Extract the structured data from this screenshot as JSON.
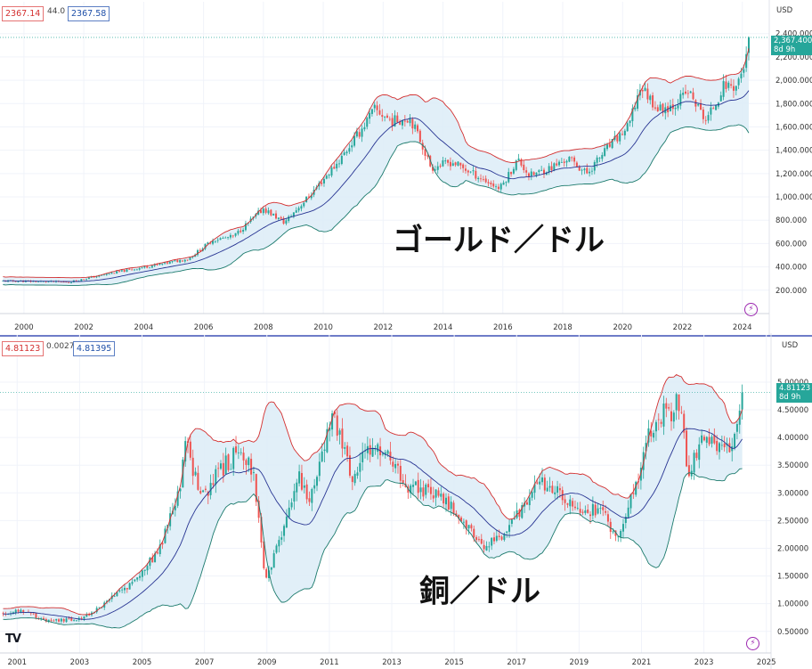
{
  "gold": {
    "title": "ゴールド／ドル",
    "header": {
      "bid": "2367.14",
      "spread": "44.0",
      "ask": "2367.58"
    },
    "unit": "USD",
    "last": {
      "value": "2,367.400",
      "countdown": "8d 9h"
    }
  },
  "copper": {
    "title": "銅／ドル",
    "header": {
      "bid": "4.81123",
      "spread": "0.00272",
      "ask": "4.81395"
    },
    "unit": "USD",
    "last": {
      "value": "4.81123",
      "countdown": "8d 9h"
    }
  },
  "icons": {
    "lightning": "lightning-icon",
    "logo": "tradingview-logo"
  },
  "colors": {
    "up": "#26a69a",
    "down": "#ef5350",
    "upper_band": "#d32f2f",
    "lower_band": "#1b7a6c",
    "mid_band": "#283593",
    "band_fill": "#dcecf7"
  },
  "chart_data": [
    {
      "type": "candlestick",
      "title": "ゴールド／ドル",
      "indicator": "bollinger bands",
      "y_ticks": [
        "200.000",
        "400.000",
        "600.000",
        "800.000",
        "1,000.000",
        "1,200.000",
        "1,400.000",
        "1,600.000",
        "1,800.000",
        "2,000.000",
        "2,200.000",
        "2,400.000"
      ],
      "x_ticks": [
        "2000",
        "2002",
        "2004",
        "2006",
        "2008",
        "2010",
        "2012",
        "2014",
        "2016",
        "2018",
        "2020",
        "2022",
        "2024"
      ],
      "ylim": [
        0,
        2520
      ],
      "xlim": [
        1999.2,
        2024.9
      ],
      "last_price": 2367.4,
      "close_path": [
        [
          1999.3,
          280
        ],
        [
          2001.5,
          270
        ],
        [
          2003.0,
          350
        ],
        [
          2004.5,
          420
        ],
        [
          2005.5,
          470
        ],
        [
          2006.3,
          630
        ],
        [
          2007.0,
          660
        ],
        [
          2008.0,
          900
        ],
        [
          2008.7,
          780
        ],
        [
          2009.5,
          1000
        ],
        [
          2010.5,
          1300
        ],
        [
          2011.2,
          1550
        ],
        [
          2011.7,
          1750
        ],
        [
          2012.3,
          1650
        ],
        [
          2012.9,
          1680
        ],
        [
          2013.3,
          1450
        ],
        [
          2013.6,
          1250
        ],
        [
          2014.3,
          1300
        ],
        [
          2015.0,
          1200
        ],
        [
          2015.9,
          1070
        ],
        [
          2016.5,
          1320
        ],
        [
          2016.9,
          1180
        ],
        [
          2017.6,
          1250
        ],
        [
          2018.2,
          1330
        ],
        [
          2018.8,
          1200
        ],
        [
          2019.5,
          1420
        ],
        [
          2020.2,
          1600
        ],
        [
          2020.6,
          1950
        ],
        [
          2021.2,
          1750
        ],
        [
          2021.7,
          1790
        ],
        [
          2022.2,
          1900
        ],
        [
          2022.8,
          1650
        ],
        [
          2023.4,
          1960
        ],
        [
          2023.8,
          1950
        ],
        [
          2024.2,
          2230
        ],
        [
          2024.3,
          2367
        ]
      ]
    },
    {
      "type": "candlestick",
      "title": "銅／ドル",
      "indicator": "bollinger bands",
      "y_ticks": [
        "0.50000",
        "1.00000",
        "1.50000",
        "2.00000",
        "2.50000",
        "3.00000",
        "3.50000",
        "4.00000",
        "4.50000",
        "5.00000"
      ],
      "x_ticks": [
        "2001",
        "2003",
        "2005",
        "2007",
        "2009",
        "2011",
        "2013",
        "2015",
        "2017",
        "2019",
        "2021",
        "2023",
        "2025"
      ],
      "ylim": [
        0.11,
        5.53
      ],
      "xlim": [
        2000.45,
        2025.15
      ],
      "last_price": 4.81123,
      "close_path": [
        [
          2000.5,
          0.82
        ],
        [
          2001.2,
          0.88
        ],
        [
          2002.0,
          0.68
        ],
        [
          2003.0,
          0.72
        ],
        [
          2003.7,
          0.95
        ],
        [
          2004.6,
          1.35
        ],
        [
          2005.5,
          1.9
        ],
        [
          2006.2,
          3.0
        ],
        [
          2006.4,
          3.9
        ],
        [
          2006.9,
          2.9
        ],
        [
          2007.5,
          3.4
        ],
        [
          2008.2,
          3.8
        ],
        [
          2008.6,
          3.3
        ],
        [
          2008.95,
          1.35
        ],
        [
          2009.5,
          2.3
        ],
        [
          2010.0,
          3.3
        ],
        [
          2010.4,
          2.9
        ],
        [
          2011.1,
          4.5
        ],
        [
          2011.7,
          3.3
        ],
        [
          2012.3,
          3.8
        ],
        [
          2013.0,
          3.6
        ],
        [
          2013.5,
          3.1
        ],
        [
          2014.5,
          3.0
        ],
        [
          2015.0,
          2.7
        ],
        [
          2015.8,
          2.05
        ],
        [
          2016.5,
          2.15
        ],
        [
          2017.1,
          2.7
        ],
        [
          2017.8,
          3.2
        ],
        [
          2018.3,
          3.05
        ],
        [
          2018.9,
          2.7
        ],
        [
          2019.8,
          2.7
        ],
        [
          2020.2,
          2.15
        ],
        [
          2020.8,
          3.1
        ],
        [
          2021.3,
          4.2
        ],
        [
          2021.7,
          4.4
        ],
        [
          2022.2,
          4.6
        ],
        [
          2022.5,
          3.3
        ],
        [
          2023.0,
          4.1
        ],
        [
          2023.4,
          3.8
        ],
        [
          2023.9,
          3.7
        ],
        [
          2024.1,
          4.3
        ],
        [
          2024.25,
          4.81
        ]
      ]
    }
  ]
}
